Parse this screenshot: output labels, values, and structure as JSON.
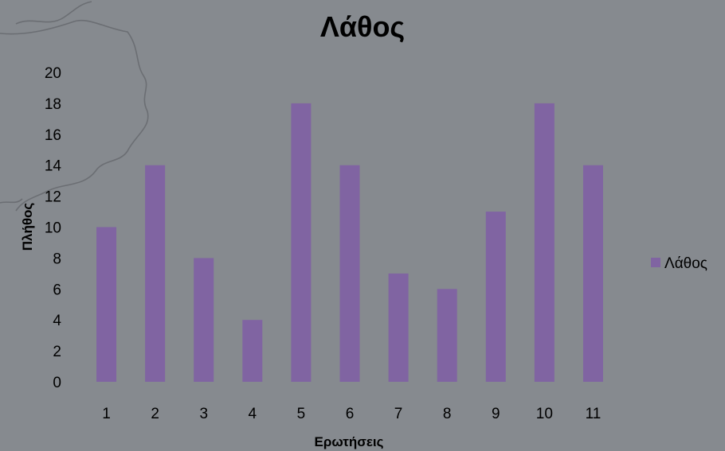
{
  "chart_data": {
    "type": "bar",
    "title": "Λάθος",
    "xlabel": "Ερωτήσεις",
    "ylabel": "Πλήθος",
    "categories": [
      "1",
      "2",
      "3",
      "4",
      "5",
      "6",
      "7",
      "8",
      "9",
      "10",
      "11"
    ],
    "series": [
      {
        "name": "Λάθος",
        "values": [
          10,
          14,
          8,
          4,
          18,
          14,
          7,
          6,
          11,
          18,
          14
        ]
      }
    ],
    "ylim": [
      0,
      20
    ],
    "yticks": [
      0,
      2,
      4,
      6,
      8,
      10,
      12,
      14,
      16,
      18,
      20
    ],
    "grid": false,
    "legend": "right",
    "colors": {
      "bar": "#8064a2",
      "background": "#868a8f"
    }
  }
}
